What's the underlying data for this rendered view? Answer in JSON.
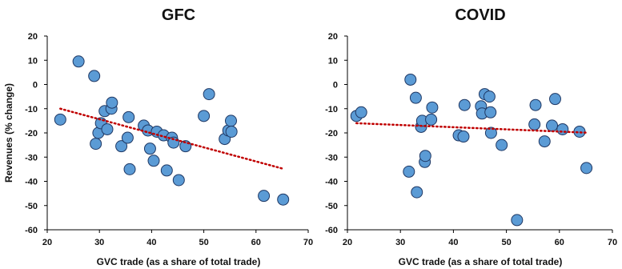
{
  "figure": {
    "ylabel": "Revenues (% change)"
  },
  "colors": {
    "marker_fill": "#5B9BD5",
    "marker_stroke": "#1F3864",
    "trend": "#C00000",
    "axis": "#000000",
    "border": "#bfbfbf"
  },
  "chart_data": [
    {
      "type": "scatter",
      "title": "GFC",
      "xlabel": "GVC trade (as a share of total trade)",
      "ylabel": "Revenues (% change)",
      "xlim": [
        20,
        70
      ],
      "ylim": [
        -60,
        20
      ],
      "xticks": [
        "20",
        "30",
        "40",
        "50",
        "60",
        "70"
      ],
      "yticks": [
        "20",
        "10",
        "0",
        "-10",
        "-20",
        "-30",
        "-40",
        "-50",
        "-60"
      ],
      "grid": false,
      "points": [
        {
          "x": 22.5,
          "y": -14.5
        },
        {
          "x": 26,
          "y": 9.5
        },
        {
          "x": 29,
          "y": 3.5
        },
        {
          "x": 29.3,
          "y": -24.5
        },
        {
          "x": 29.8,
          "y": -20
        },
        {
          "x": 30.3,
          "y": -16
        },
        {
          "x": 31,
          "y": -11
        },
        {
          "x": 31.5,
          "y": -18.5
        },
        {
          "x": 32.3,
          "y": -10
        },
        {
          "x": 32.4,
          "y": -7.5
        },
        {
          "x": 34.2,
          "y": -25.5
        },
        {
          "x": 35.4,
          "y": -22
        },
        {
          "x": 35.6,
          "y": -13.5
        },
        {
          "x": 35.8,
          "y": -35
        },
        {
          "x": 38.5,
          "y": -17
        },
        {
          "x": 39.3,
          "y": -19
        },
        {
          "x": 39.7,
          "y": -26.5
        },
        {
          "x": 40.4,
          "y": -31.5
        },
        {
          "x": 41,
          "y": -19.5
        },
        {
          "x": 42.3,
          "y": -21
        },
        {
          "x": 42.9,
          "y": -35.5
        },
        {
          "x": 43.9,
          "y": -22
        },
        {
          "x": 44.2,
          "y": -24
        },
        {
          "x": 45.2,
          "y": -39.5
        },
        {
          "x": 46.5,
          "y": -25.5
        },
        {
          "x": 50,
          "y": -13
        },
        {
          "x": 51,
          "y": -4
        },
        {
          "x": 54,
          "y": -22.5
        },
        {
          "x": 54.7,
          "y": -19
        },
        {
          "x": 55.2,
          "y": -15
        },
        {
          "x": 55.3,
          "y": -19.5
        },
        {
          "x": 61.5,
          "y": -46
        },
        {
          "x": 65.2,
          "y": -47.5
        }
      ],
      "trendline": {
        "style": "dotted",
        "x": [
          22.5,
          65.2
        ],
        "y": [
          -10,
          -34.8
        ]
      }
    },
    {
      "type": "scatter",
      "title": "COVID",
      "xlabel": "GVC trade (as a share of total trade)",
      "ylabel": "",
      "xlim": [
        20,
        70
      ],
      "ylim": [
        -60,
        20
      ],
      "xticks": [
        "20",
        "30",
        "40",
        "50",
        "60",
        "70"
      ],
      "yticks": [
        "20",
        "10",
        "0",
        "-10",
        "-20",
        "-30",
        "-40",
        "-50",
        "-60"
      ],
      "grid": false,
      "points": [
        {
          "x": 21.7,
          "y": -13
        },
        {
          "x": 22.6,
          "y": -11.5
        },
        {
          "x": 31.6,
          "y": -36
        },
        {
          "x": 31.9,
          "y": 2
        },
        {
          "x": 32.9,
          "y": -5.5
        },
        {
          "x": 33.1,
          "y": -44.5
        },
        {
          "x": 33.9,
          "y": -17.5
        },
        {
          "x": 34.1,
          "y": -15
        },
        {
          "x": 34.6,
          "y": -32
        },
        {
          "x": 34.7,
          "y": -29.5
        },
        {
          "x": 35.8,
          "y": -14.5
        },
        {
          "x": 36,
          "y": -9.5
        },
        {
          "x": 41,
          "y": -21
        },
        {
          "x": 41.9,
          "y": -21.5
        },
        {
          "x": 42.1,
          "y": -8.5
        },
        {
          "x": 45.2,
          "y": -9
        },
        {
          "x": 45.4,
          "y": -12
        },
        {
          "x": 45.9,
          "y": -4
        },
        {
          "x": 46.8,
          "y": -5
        },
        {
          "x": 47,
          "y": -11.5
        },
        {
          "x": 47.1,
          "y": -20
        },
        {
          "x": 49.1,
          "y": -25
        },
        {
          "x": 52,
          "y": -56
        },
        {
          "x": 55.3,
          "y": -16.5
        },
        {
          "x": 55.5,
          "y": -8.5
        },
        {
          "x": 57.2,
          "y": -23.5
        },
        {
          "x": 58.6,
          "y": -17
        },
        {
          "x": 59.2,
          "y": -6
        },
        {
          "x": 60.6,
          "y": -18.5
        },
        {
          "x": 63.8,
          "y": -19.5
        },
        {
          "x": 65.1,
          "y": -34.5
        }
      ],
      "trendline": {
        "style": "dotted",
        "x": [
          21.7,
          65.1
        ],
        "y": [
          -16,
          -19.9
        ]
      }
    }
  ]
}
